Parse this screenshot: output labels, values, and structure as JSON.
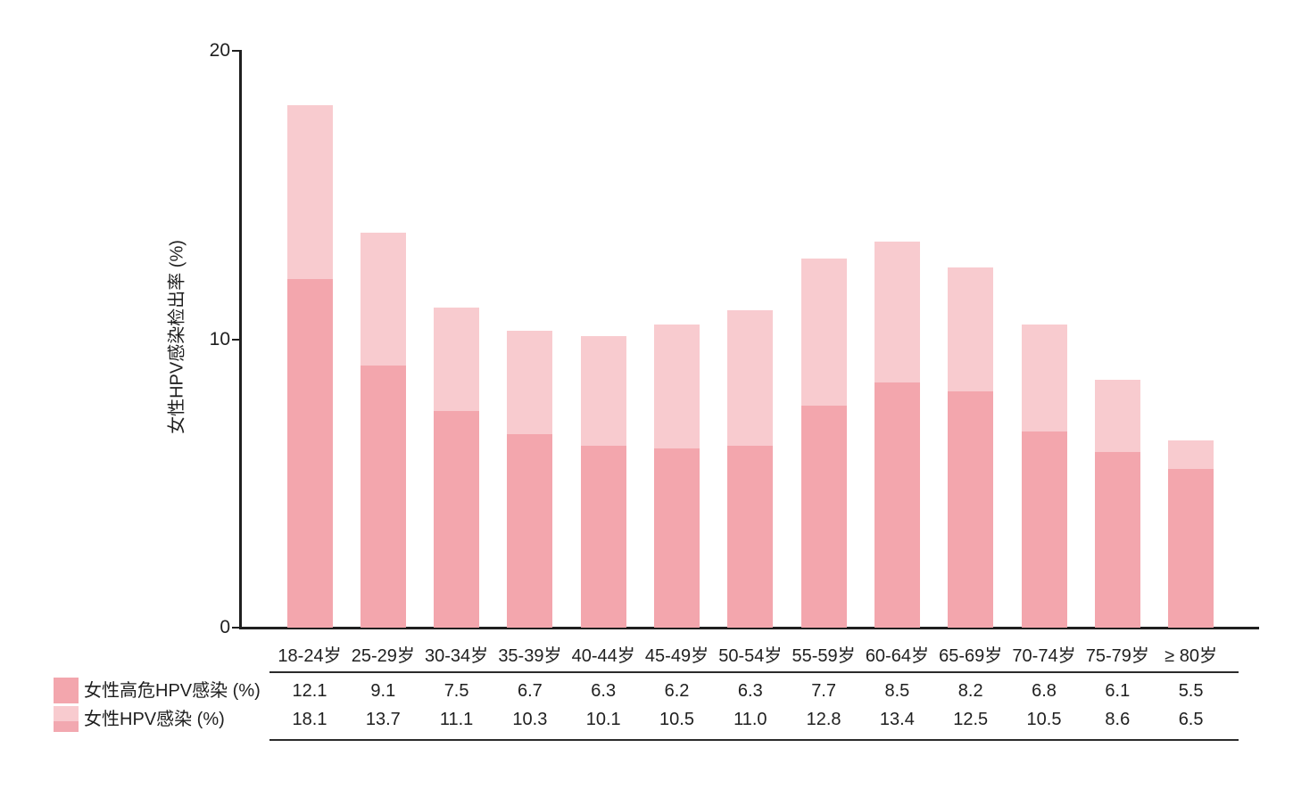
{
  "page": {
    "background": "#ffffff"
  },
  "chart_data": {
    "type": "bar",
    "variant": "overlaid-bars-with-value-table",
    "title": "",
    "xlabel": "",
    "ylabel": "女性HPV感染检出率 (%)",
    "ylim": [
      0,
      20
    ],
    "yticks": [
      0,
      10,
      20
    ],
    "grid": false,
    "legend_position": "bottom-left",
    "categories": [
      "18-24岁",
      "25-29岁",
      "30-34岁",
      "35-39岁",
      "40-44岁",
      "45-49岁",
      "50-54岁",
      "55-59岁",
      "60-64岁",
      "65-69岁",
      "70-74岁",
      "75-79岁",
      "≥ 80岁"
    ],
    "series": [
      {
        "name": "女性高危HPV感染 (%)",
        "color": "#F3A6AD",
        "values": [
          12.1,
          9.1,
          7.5,
          6.7,
          6.3,
          6.2,
          6.3,
          7.7,
          8.5,
          8.2,
          6.8,
          6.1,
          5.5
        ]
      },
      {
        "name": "女性HPV感染 (%)",
        "color": "#F8CBCF",
        "swatch_secondary": "#F2A8B0",
        "values": [
          18.1,
          13.7,
          11.1,
          10.3,
          10.1,
          10.5,
          11.0,
          12.8,
          13.4,
          12.5,
          10.5,
          8.6,
          6.5
        ]
      }
    ],
    "colors": {
      "axis": "#1f1f1f",
      "text": "#1f1f1f",
      "table_rule": "#2b2b2b"
    }
  }
}
